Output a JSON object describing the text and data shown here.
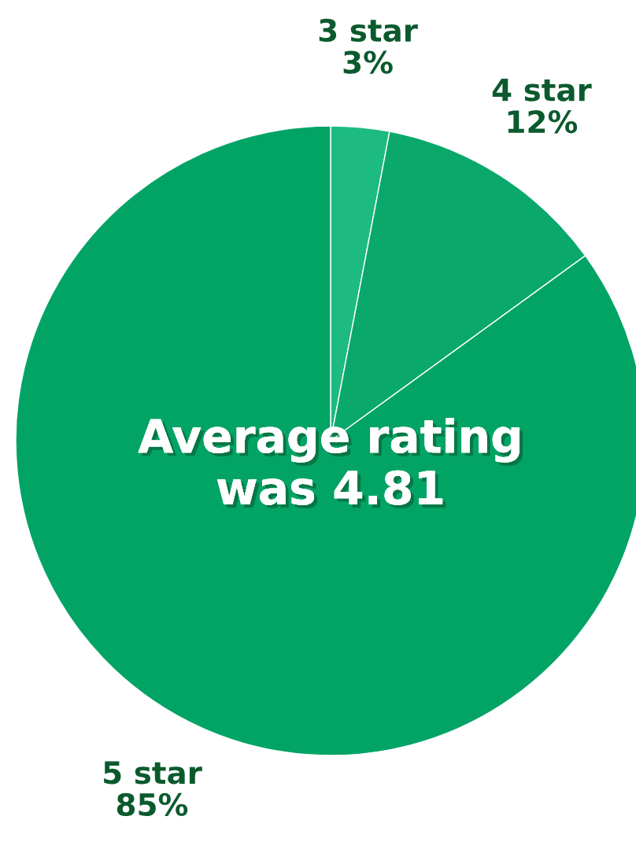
{
  "chart_data": {
    "type": "pie",
    "categories": [
      "3 star",
      "4 star",
      "5 star"
    ],
    "values": [
      3,
      12,
      85
    ],
    "value_labels": [
      "3%",
      "12%",
      "85%"
    ],
    "colors": [
      "#1dba82",
      "#0aa86b",
      "#02a466"
    ],
    "annotations": [
      "Average rating\nwas 4.81"
    ]
  }
}
